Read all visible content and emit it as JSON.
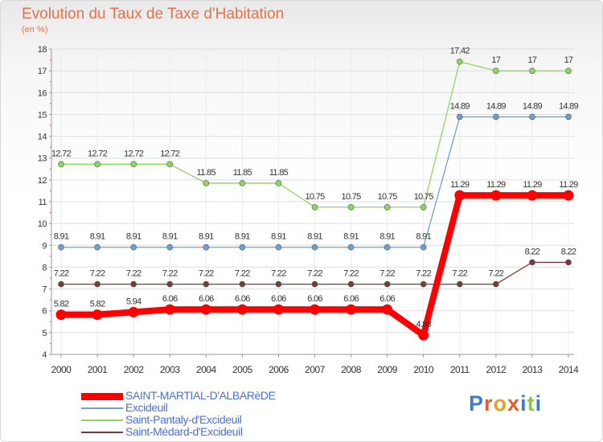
{
  "header": {
    "title": "Evolution du Taux de Taxe d'Habitation",
    "unit": "(en %)"
  },
  "brand": {
    "text": "Proxiti",
    "colors": [
      "#3a7bd5",
      "#e65b2a",
      "#e6a11e",
      "#e65b2a",
      "#3a7bd5",
      "#8cc63f",
      "#3a7bd5"
    ]
  },
  "chart_data": {
    "type": "line",
    "title": "Evolution du Taux de Taxe d'Habitation",
    "ylabel": "(en %)",
    "xlabel": "",
    "x": [
      "2000",
      "2001",
      "2002",
      "2003",
      "2004",
      "2005",
      "2006",
      "2007",
      "2008",
      "2009",
      "2010",
      "2011",
      "2012",
      "2013",
      "2014"
    ],
    "ylim": [
      4,
      18
    ],
    "yticks": [
      4,
      5,
      6,
      7,
      8,
      9,
      10,
      11,
      12,
      13,
      14,
      15,
      16,
      17,
      18
    ],
    "grid": true,
    "legend_position": "bottom",
    "series": [
      {
        "name": "SAINT-MARTIAL-D'ALBARèDE",
        "color": "#ff0000",
        "emphasis": true,
        "values": [
          5.82,
          5.82,
          5.94,
          6.06,
          6.06,
          6.06,
          6.06,
          6.06,
          6.06,
          6.06,
          4.88,
          11.29,
          11.29,
          11.29,
          11.29
        ],
        "labels": [
          "5.82",
          "5.82",
          "5.94",
          "6.06",
          "6.06",
          "6.06",
          "6.06",
          "6.06",
          "6.06",
          "6.06",
          "4.88",
          "11.29",
          "11.29",
          "11.29",
          "11.29"
        ]
      },
      {
        "name": "Excideuil",
        "color": "#6ea0d4",
        "values": [
          8.91,
          8.91,
          8.91,
          8.91,
          8.91,
          8.91,
          8.91,
          8.91,
          8.91,
          8.91,
          8.91,
          14.89,
          14.89,
          14.89,
          14.89
        ],
        "labels": [
          "8.91",
          "8.91",
          "8.91",
          "8.91",
          "8.91",
          "8.91",
          "8.91",
          "8.91",
          "8.91",
          "8.91",
          "8.91",
          "14.89",
          "14.89",
          "14.89",
          "14.89"
        ]
      },
      {
        "name": "Saint-Pantaly-d'Excideuil",
        "color": "#8ed660",
        "values": [
          12.72,
          12.72,
          12.72,
          12.72,
          11.85,
          11.85,
          11.85,
          10.75,
          10.75,
          10.75,
          10.75,
          17.42,
          17,
          17,
          17
        ],
        "labels": [
          "12.72",
          "12.72",
          "12.72",
          "12.72",
          "11.85",
          "11.85",
          "11.85",
          "10.75",
          "10.75",
          "10.75",
          "10.75",
          "17.42",
          "17",
          "17",
          "17"
        ]
      },
      {
        "name": "Saint-Médard-d'Excideuil",
        "color": "#7a3a3a",
        "values": [
          7.22,
          7.22,
          7.22,
          7.22,
          7.22,
          7.22,
          7.22,
          7.22,
          7.22,
          7.22,
          7.22,
          7.22,
          7.22,
          8.22,
          8.22
        ],
        "labels": [
          "7.22",
          "7.22",
          "7.22",
          "7.22",
          "7.22",
          "7.22",
          "7.22",
          "7.22",
          "7.22",
          "7.22",
          "7.22",
          "7.22",
          "7.22",
          "8.22",
          "8.22"
        ]
      }
    ]
  }
}
